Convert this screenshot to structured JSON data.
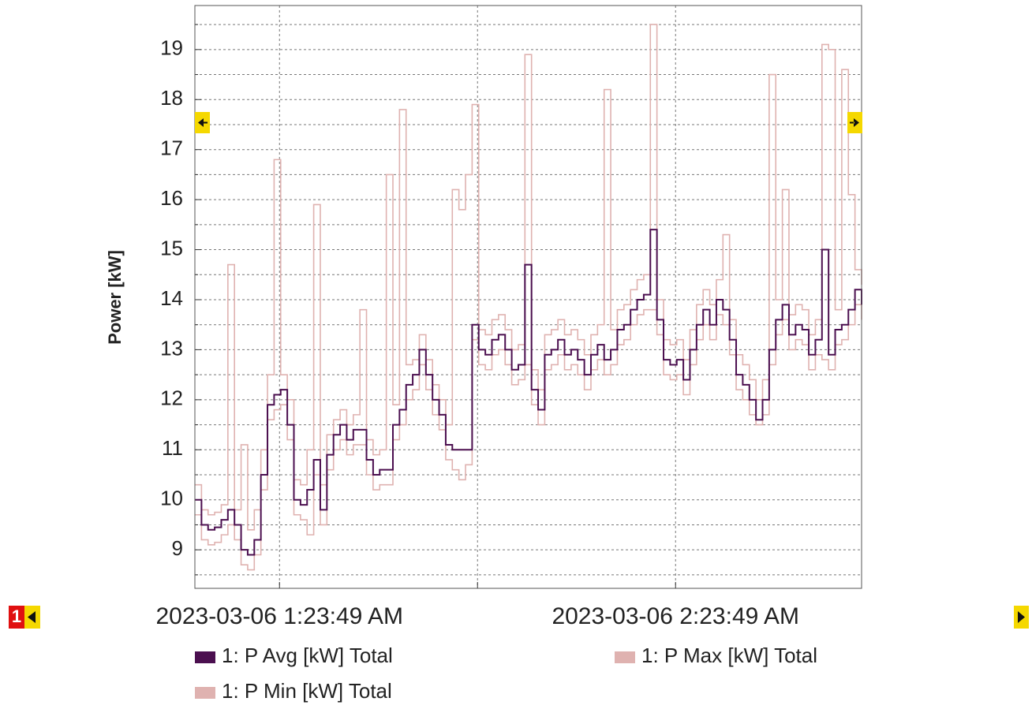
{
  "chart_data": {
    "type": "line",
    "y_label": "Power [kW]",
    "page_indicator": "1",
    "x": [
      71,
      72,
      73,
      74,
      75,
      76,
      77,
      78,
      79,
      80,
      81,
      82,
      83,
      84,
      85,
      86,
      87,
      88,
      89,
      90,
      91,
      92,
      93,
      94,
      95,
      96,
      97,
      98,
      99,
      100,
      101,
      102,
      103,
      104,
      105,
      106,
      107,
      108,
      109,
      110,
      111,
      112,
      113,
      114,
      115,
      116,
      117,
      118,
      119,
      120,
      121,
      122,
      123,
      124,
      125,
      126,
      127,
      128,
      129,
      130,
      131,
      132,
      133,
      134,
      135,
      136,
      137,
      138,
      139,
      140,
      141,
      142,
      143,
      144,
      145,
      146,
      147,
      148,
      149,
      150,
      151,
      152,
      153,
      154,
      155,
      156,
      157,
      158,
      159,
      160,
      161,
      162,
      163,
      164,
      165,
      166,
      167,
      168,
      169,
      170,
      171,
      172
    ],
    "series": [
      {
        "name": "1: P Avg [kW] Total",
        "color": "#4b0f4f",
        "values": [
          10.0,
          9.5,
          9.4,
          9.45,
          9.6,
          9.8,
          9.5,
          9.0,
          8.9,
          9.2,
          10.5,
          11.9,
          12.1,
          12.2,
          11.5,
          10.0,
          9.9,
          10.2,
          10.8,
          9.8,
          10.9,
          11.3,
          11.5,
          11.2,
          11.4,
          11.4,
          10.8,
          10.5,
          10.6,
          10.6,
          11.5,
          11.8,
          12.3,
          12.5,
          13.0,
          12.5,
          12.0,
          11.7,
          11.1,
          11.0,
          11.0,
          11.0,
          13.5,
          13.0,
          12.9,
          13.2,
          13.3,
          13.0,
          12.6,
          12.7,
          14.7,
          12.2,
          11.8,
          12.9,
          13.0,
          13.2,
          12.9,
          13.0,
          12.8,
          12.5,
          12.9,
          13.1,
          12.8,
          13.0,
          13.4,
          13.5,
          13.8,
          14.0,
          14.1,
          15.4,
          13.6,
          12.8,
          12.7,
          12.8,
          12.4,
          13.0,
          13.5,
          13.8,
          13.5,
          14.0,
          13.8,
          13.2,
          12.5,
          12.3,
          12.0,
          11.6,
          12.0,
          13.0,
          13.6,
          13.9,
          13.3,
          13.5,
          13.4,
          12.9,
          13.2,
          15.0,
          12.9,
          13.4,
          13.5,
          13.8,
          14.2,
          13.9
        ]
      },
      {
        "name": "1: P Max [kW] Total",
        "color": "#dfb2b0",
        "values": [
          10.3,
          9.8,
          9.7,
          9.75,
          9.9,
          14.7,
          9.8,
          11.1,
          9.4,
          9.8,
          11.0,
          12.5,
          16.8,
          12.5,
          12.0,
          10.4,
          10.3,
          11.0,
          15.9,
          10.3,
          11.3,
          11.6,
          11.8,
          11.5,
          11.7,
          13.8,
          11.2,
          10.9,
          11.0,
          16.5,
          11.9,
          17.8,
          12.7,
          12.8,
          13.3,
          12.8,
          12.3,
          12.0,
          11.5,
          16.2,
          15.8,
          16.5,
          17.9,
          13.4,
          13.3,
          13.6,
          13.7,
          13.4,
          13.0,
          13.1,
          18.9,
          12.6,
          12.2,
          13.3,
          13.4,
          13.6,
          13.3,
          13.4,
          13.2,
          12.9,
          13.3,
          13.5,
          18.2,
          13.4,
          13.8,
          13.9,
          14.2,
          14.4,
          14.5,
          19.5,
          14.0,
          13.2,
          13.1,
          13.2,
          12.8,
          13.4,
          13.9,
          14.2,
          13.9,
          14.4,
          15.3,
          13.6,
          12.9,
          12.7,
          12.4,
          12.0,
          12.4,
          18.5,
          14.0,
          16.2,
          13.7,
          13.9,
          13.8,
          13.3,
          13.6,
          19.1,
          19.0,
          13.8,
          18.6,
          16.1,
          14.6,
          14.3
        ]
      },
      {
        "name": "1: P Min [kW] Total",
        "color": "#dfb2b0",
        "values": [
          9.7,
          9.2,
          9.1,
          9.15,
          9.3,
          9.5,
          9.2,
          8.7,
          8.6,
          8.9,
          10.2,
          11.6,
          11.8,
          11.9,
          11.2,
          9.7,
          9.6,
          9.3,
          10.5,
          9.5,
          10.6,
          11.0,
          11.2,
          10.9,
          11.1,
          11.1,
          10.5,
          10.2,
          10.3,
          10.3,
          11.2,
          11.5,
          12.0,
          12.2,
          12.7,
          12.2,
          11.7,
          11.4,
          10.8,
          10.6,
          10.4,
          10.7,
          13.2,
          12.7,
          12.6,
          12.9,
          13.0,
          12.7,
          12.3,
          12.4,
          12.7,
          11.9,
          11.5,
          12.6,
          12.7,
          12.9,
          12.6,
          12.7,
          12.5,
          12.2,
          12.6,
          12.8,
          12.5,
          12.7,
          13.1,
          13.2,
          13.5,
          13.7,
          13.8,
          13.8,
          13.3,
          12.5,
          12.4,
          12.5,
          12.1,
          12.7,
          13.2,
          13.5,
          13.2,
          13.7,
          13.5,
          12.9,
          12.2,
          12.0,
          11.7,
          11.5,
          11.7,
          12.7,
          13.3,
          13.6,
          13.0,
          13.2,
          13.1,
          12.6,
          12.9,
          12.8,
          12.6,
          13.1,
          13.2,
          13.5,
          13.9,
          13.6
        ]
      }
    ],
    "xlim": [
      71,
      172
    ],
    "xticks": [
      {
        "value": 83.82,
        "label": "2023-03-06 1:23:49 AM"
      },
      {
        "value": 113.82,
        "label": null
      },
      {
        "value": 143.82,
        "label": "2023-03-06 2:23:49 AM"
      }
    ],
    "ylim": [
      8.23,
      19.88
    ],
    "yticks": [
      9,
      10,
      11,
      12,
      13,
      14,
      15,
      16,
      17,
      18,
      19
    ],
    "grid": true
  }
}
